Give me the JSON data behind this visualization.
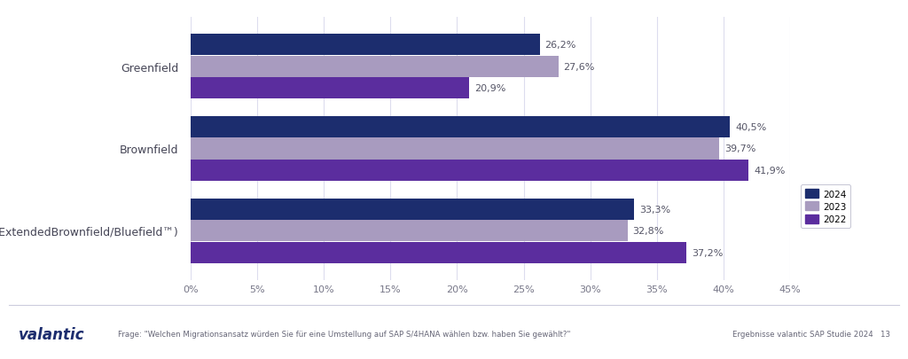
{
  "categories": [
    "Greenfield",
    "Brownfield",
    "Hybrid  (ExtendedBrownfield/Bluefield™)"
  ],
  "series": {
    "2024": [
      26.2,
      40.5,
      33.3
    ],
    "2023": [
      27.6,
      39.7,
      32.8
    ],
    "2022": [
      20.9,
      41.9,
      37.2
    ]
  },
  "colors": {
    "2024": "#1c2d6e",
    "2023": "#a89bbf",
    "2022": "#5b2d9e"
  },
  "bar_labels": {
    "2024": [
      "26,2%",
      "40,5%",
      "33,3%"
    ],
    "2023": [
      "27,6%",
      "39,7%",
      "32,8%"
    ],
    "2022": [
      "20,9%",
      "41,9%",
      "37,2%"
    ]
  },
  "xlim": [
    0,
    45
  ],
  "xticks": [
    0,
    5,
    10,
    15,
    20,
    25,
    30,
    35,
    40,
    45
  ],
  "xtick_labels": [
    "0%",
    "5%",
    "10%",
    "15%",
    "20%",
    "25%",
    "30%",
    "35%",
    "40%",
    "45%"
  ],
  "background_color": "#ffffff",
  "footer_left": "valantic",
  "footer_note": "Frage: \"Welchen Migrationsansatz würden Sie für eine Umstellung auf SAP S/4HANA wählen bzw. haben Sie gewählt?\"",
  "footer_right": "Ergebnisse valantic SAP Studie 2024   13"
}
